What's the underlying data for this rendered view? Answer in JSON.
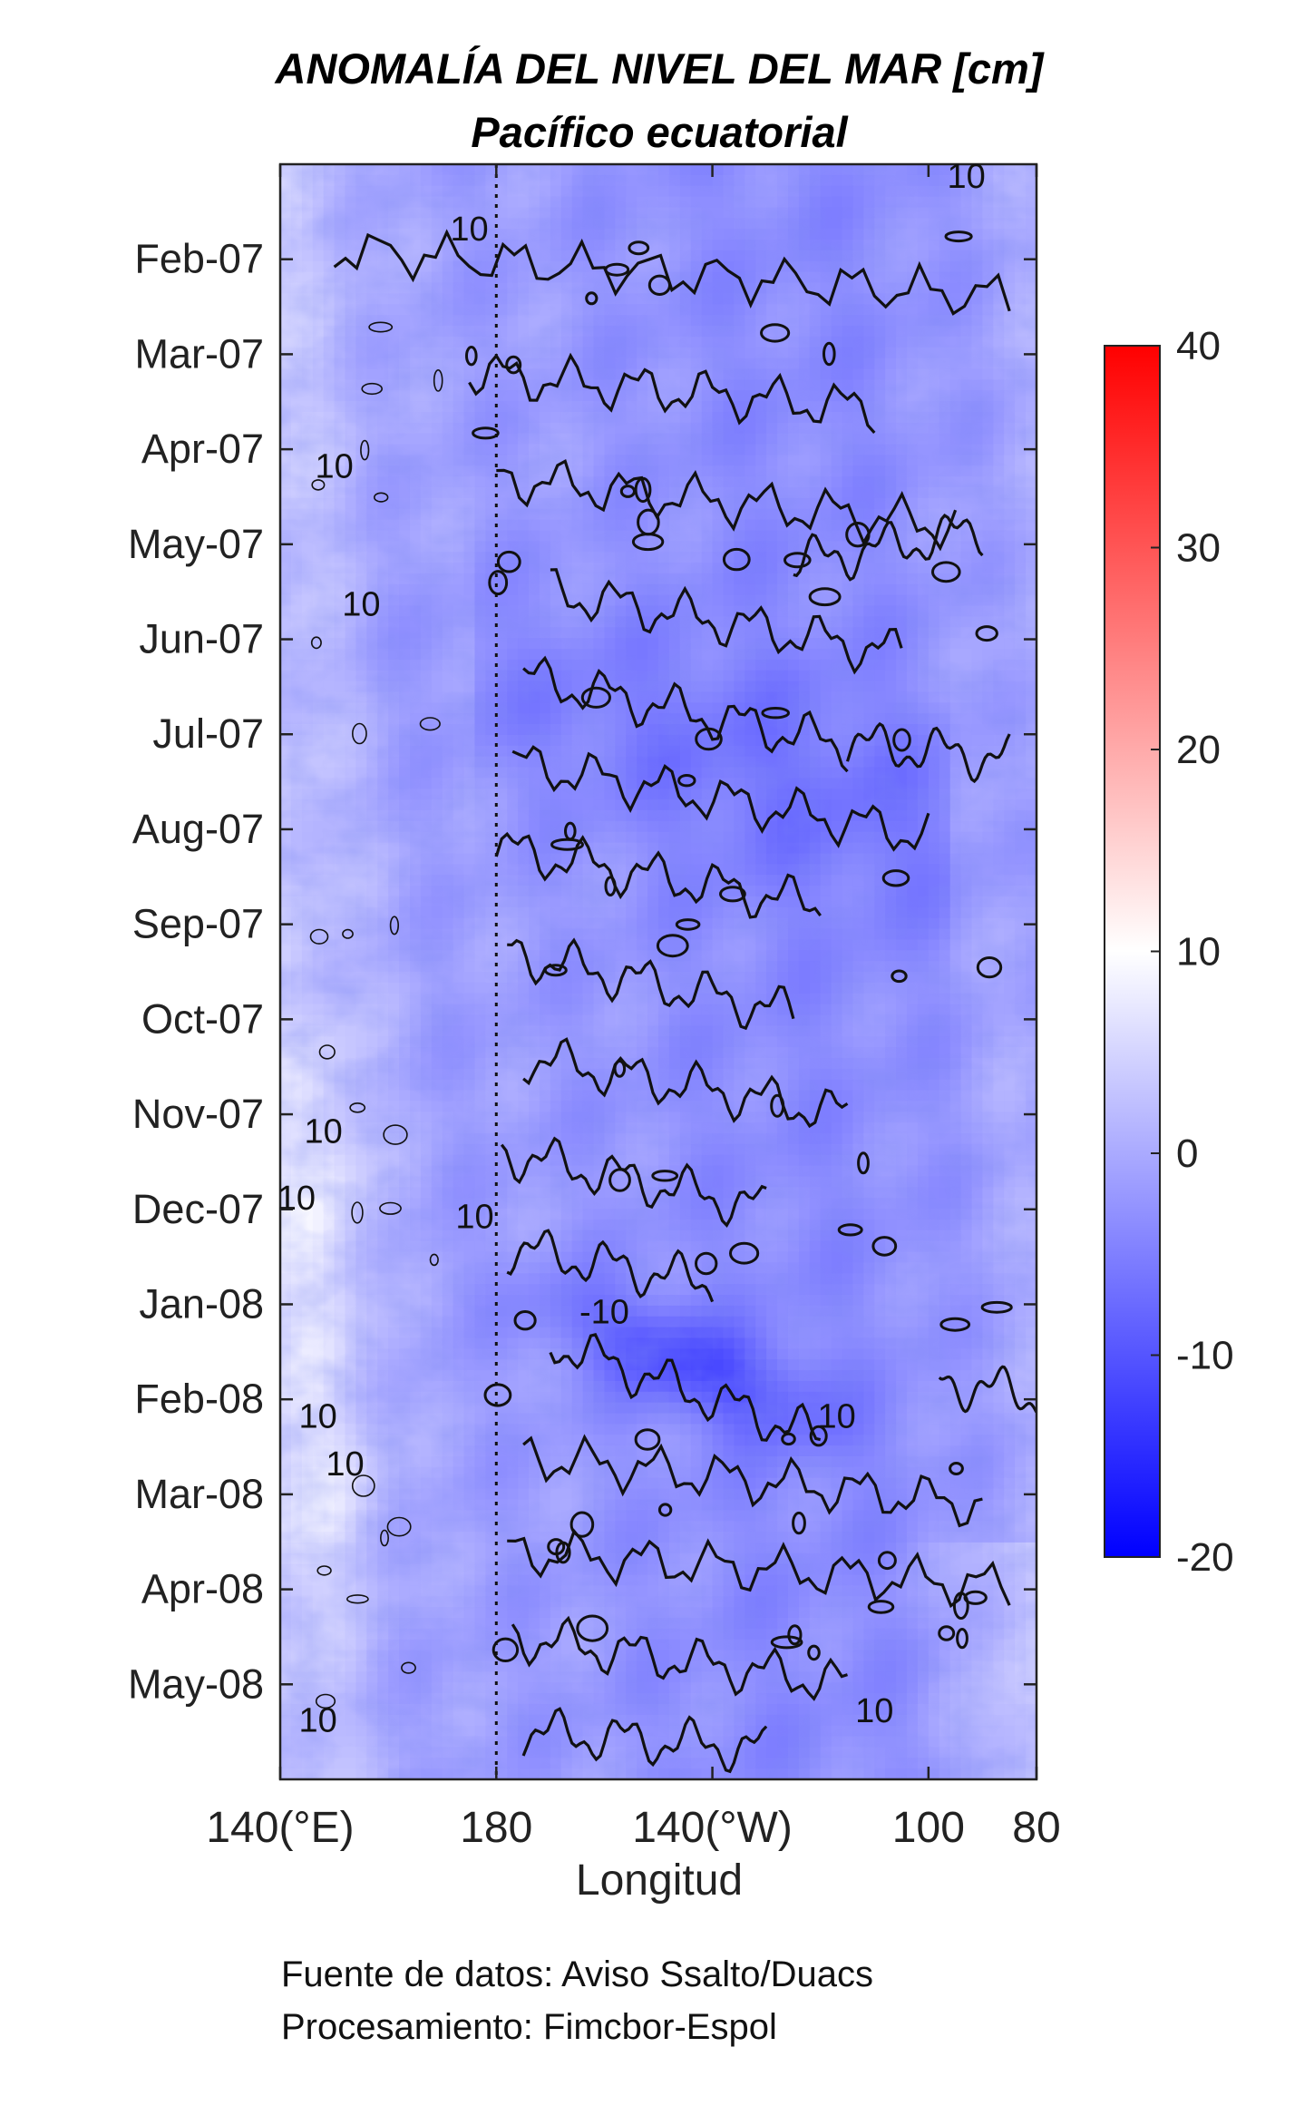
{
  "chart_data": {
    "type": "heatmap",
    "title": "ANOMALÍA DEL NIVEL DEL MAR [cm]",
    "subtitle": "Pacífico ecuatorial",
    "xlabel": "Longitud",
    "ylabel": "",
    "x_ticks": [
      {
        "value": 140,
        "label": "140(°E)"
      },
      {
        "value": 180,
        "label": "180"
      },
      {
        "value": 220,
        "label": "140(°W)"
      },
      {
        "value": 260,
        "label": "100"
      },
      {
        "value": 280,
        "label": "80"
      }
    ],
    "xlim": [
      140,
      280
    ],
    "y_ticks": [
      {
        "value": 1,
        "label": "Feb-07"
      },
      {
        "value": 2,
        "label": "Mar-07"
      },
      {
        "value": 3,
        "label": "Apr-07"
      },
      {
        "value": 4,
        "label": "May-07"
      },
      {
        "value": 5,
        "label": "Jun-07"
      },
      {
        "value": 6,
        "label": "Jul-07"
      },
      {
        "value": 7,
        "label": "Aug-07"
      },
      {
        "value": 8,
        "label": "Sep-07"
      },
      {
        "value": 9,
        "label": "Oct-07"
      },
      {
        "value": 10,
        "label": "Nov-07"
      },
      {
        "value": 11,
        "label": "Dec-07"
      },
      {
        "value": 12,
        "label": "Jan-08"
      },
      {
        "value": 13,
        "label": "Feb-08"
      },
      {
        "value": 14,
        "label": "Mar-08"
      },
      {
        "value": 15,
        "label": "Apr-08"
      },
      {
        "value": 16,
        "label": "May-08"
      }
    ],
    "ylim": [
      0,
      17
    ],
    "y_reversed": true,
    "colorbar": {
      "ticks": [
        -20,
        -10,
        0,
        10,
        20,
        30,
        40
      ],
      "range": [
        -20,
        40
      ],
      "colormap": [
        "#0000ff",
        "#ffffff",
        "#ff0000"
      ],
      "placement": "right"
    },
    "reference_line": {
      "x": 180,
      "style": "dotted"
    },
    "contour_levels": [
      -10,
      10
    ],
    "contour_labels": [
      {
        "x": 200,
        "y": 12.2,
        "text": "-10"
      },
      {
        "x": 243,
        "y": 13.3,
        "text": "10"
      },
      {
        "x": 175,
        "y": 0.8,
        "text": "10"
      },
      {
        "x": 150,
        "y": 3.3,
        "text": "10"
      },
      {
        "x": 155,
        "y": 4.75,
        "text": "10"
      },
      {
        "x": 148,
        "y": 10.3,
        "text": "10"
      },
      {
        "x": 143,
        "y": 11.0,
        "text": "10"
      },
      {
        "x": 176,
        "y": 11.2,
        "text": "10"
      },
      {
        "x": 147,
        "y": 13.3,
        "text": "10"
      },
      {
        "x": 152,
        "y": 13.8,
        "text": "10"
      },
      {
        "x": 147,
        "y": 16.5,
        "text": "10"
      },
      {
        "x": 250,
        "y": 16.4,
        "text": "10"
      },
      {
        "x": 267,
        "y": 0.25,
        "text": "10"
      }
    ],
    "grid": false
  },
  "footer": {
    "line1": "Fuente de datos: Aviso Ssalto/Duacs",
    "line2": "Procesamiento: Fimcbor-Espol"
  }
}
